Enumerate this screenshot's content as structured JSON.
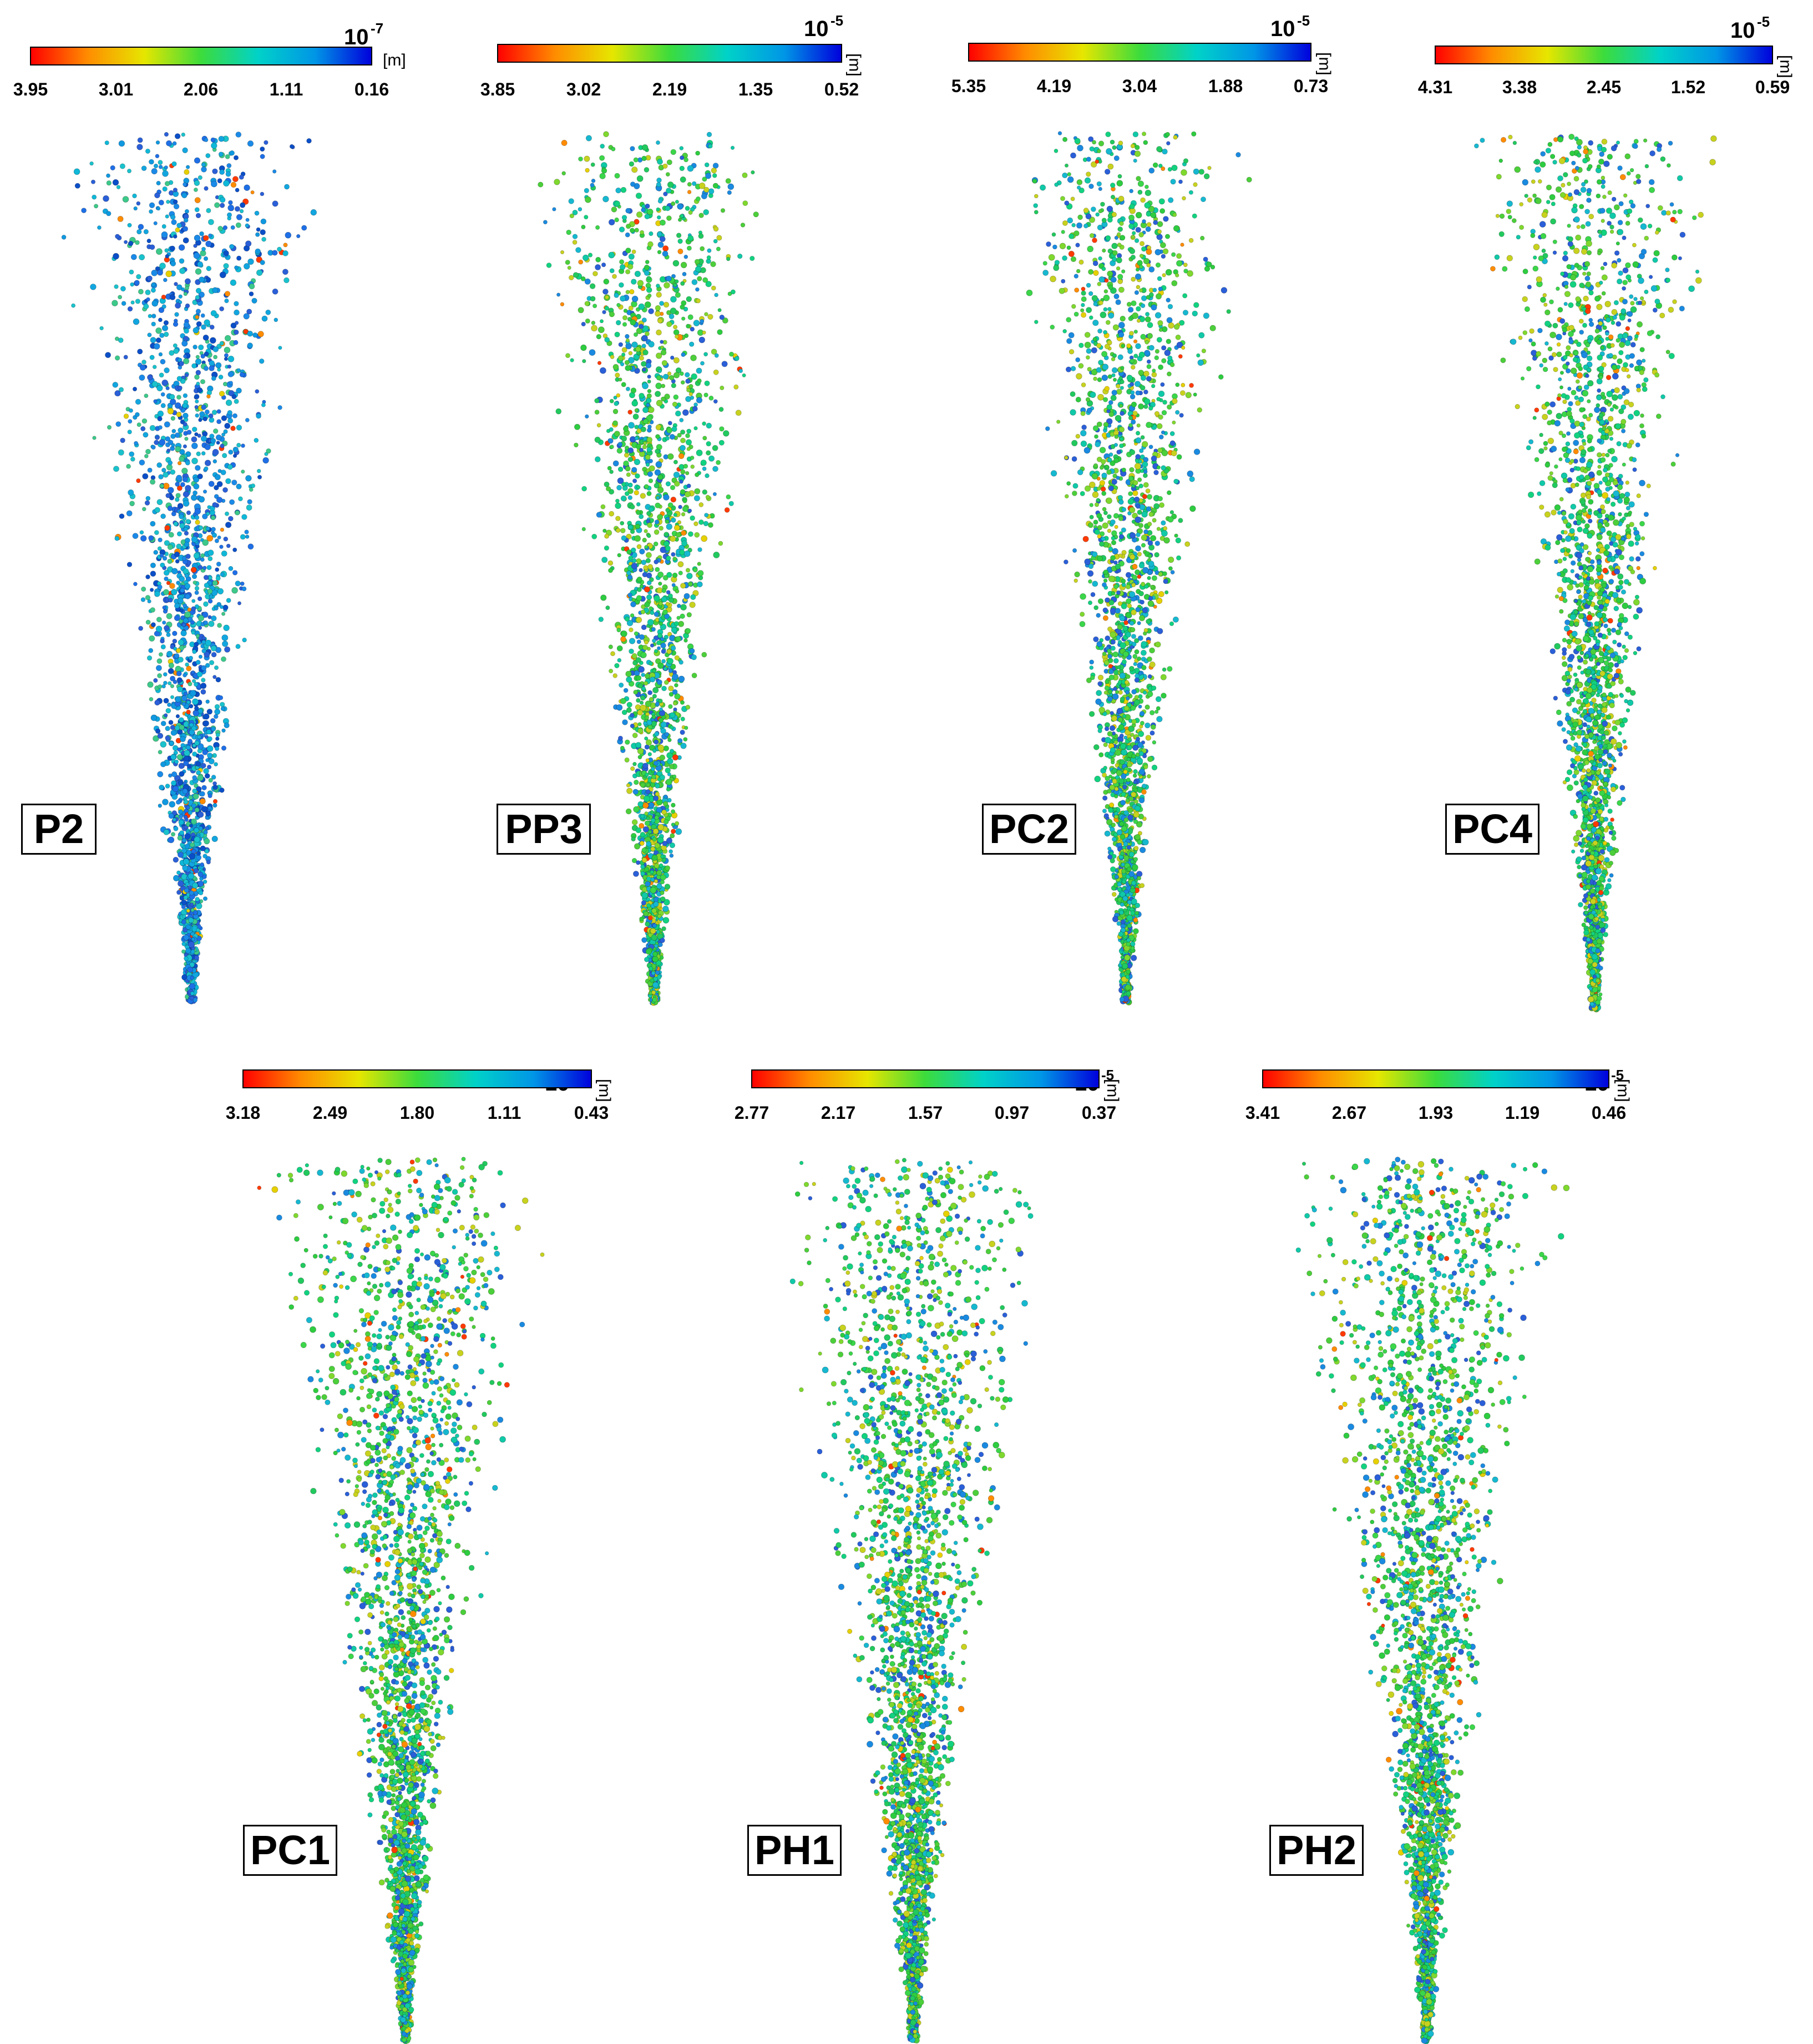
{
  "colormap": [
    "#ff0000",
    "#ff8c00",
    "#e6e600",
    "#3cdc3c",
    "#00d2c8",
    "#0096e6",
    "#0000dc"
  ],
  "panels": [
    {
      "label": "P2",
      "exponent_base": "10",
      "exponent": "-7",
      "unit": "[m]",
      "ticks": [
        "3.95",
        "3.01",
        "2.06",
        "1.11",
        "0.16"
      ],
      "dominant_color": "blue"
    },
    {
      "label": "PP3",
      "exponent_base": "10",
      "exponent": "-5",
      "unit": "[m]",
      "ticks": [
        "3.85",
        "3.02",
        "2.19",
        "1.35",
        "0.52"
      ],
      "dominant_color": "green"
    },
    {
      "label": "PC2",
      "exponent_base": "10",
      "exponent": "-5",
      "unit": "[m]",
      "ticks": [
        "5.35",
        "4.19",
        "3.04",
        "1.88",
        "0.73"
      ],
      "dominant_color": "green"
    },
    {
      "label": "PC4",
      "exponent_base": "10",
      "exponent": "-5",
      "unit": "[m]",
      "ticks": [
        "4.31",
        "3.38",
        "2.45",
        "1.52",
        "0.59"
      ],
      "dominant_color": "green"
    },
    {
      "label": "PC1",
      "exponent_base": "10",
      "exponent": "-5",
      "unit": "[m]",
      "ticks": [
        "3.18",
        "2.49",
        "1.80",
        "1.11",
        "0.43"
      ],
      "dominant_color": "green"
    },
    {
      "label": "PH1",
      "exponent_base": "10",
      "exponent": "-5",
      "unit": "[m]",
      "ticks": [
        "2.77",
        "2.17",
        "1.57",
        "0.97",
        "0.37"
      ],
      "dominant_color": "green"
    },
    {
      "label": "PH2",
      "exponent_base": "10",
      "exponent": "-5",
      "unit": "[m]",
      "ticks": [
        "3.41",
        "2.67",
        "1.93",
        "1.19",
        "0.46"
      ],
      "dominant_color": "green"
    }
  ]
}
